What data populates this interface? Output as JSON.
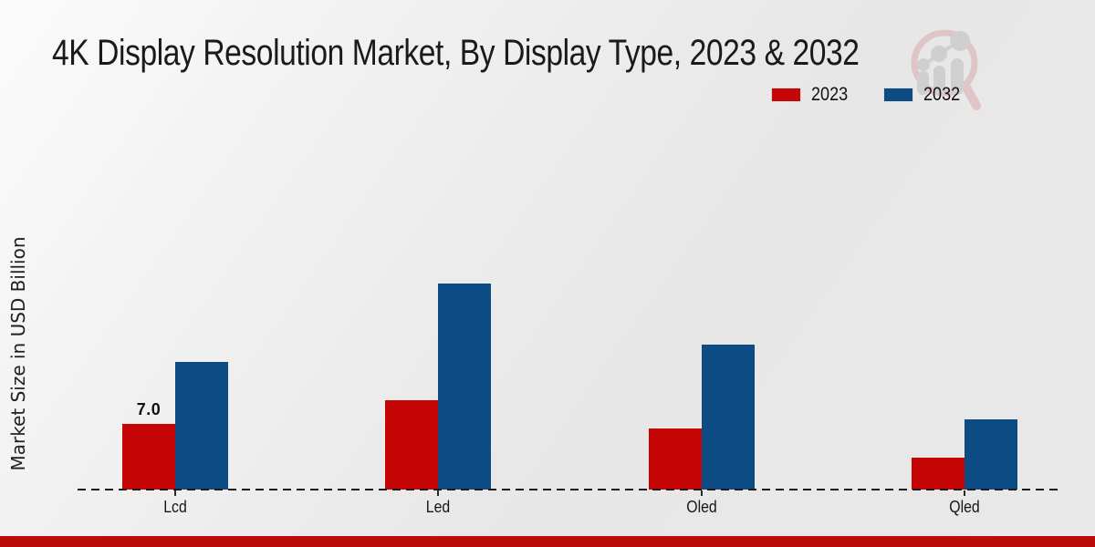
{
  "chart_data": {
    "type": "bar",
    "title": "4K Display Resolution Market, By Display Type, 2023 & 2032",
    "categories": [
      "Lcd",
      "Led",
      "Oled",
      "Qled"
    ],
    "series": [
      {
        "name": "2023",
        "color": "#c50505",
        "values": [
          7.0,
          9.5,
          6.5,
          3.4
        ]
      },
      {
        "name": "2032",
        "color": "#0d4b85",
        "values": [
          13.6,
          22.0,
          15.5,
          7.5
        ]
      }
    ],
    "bar_labels": [
      {
        "series": "2023",
        "category": "Lcd",
        "text": "7.0"
      }
    ],
    "ylabel": "Market Size in USD Billion",
    "xlabel": "",
    "ylim": [
      0,
      25
    ],
    "grid": false,
    "legend_position": "top-right",
    "baseline_style": "dashed"
  },
  "icons": {
    "watermark": "market-research-future-logo"
  },
  "footer": {
    "accent_color": "#bd0a0a"
  }
}
